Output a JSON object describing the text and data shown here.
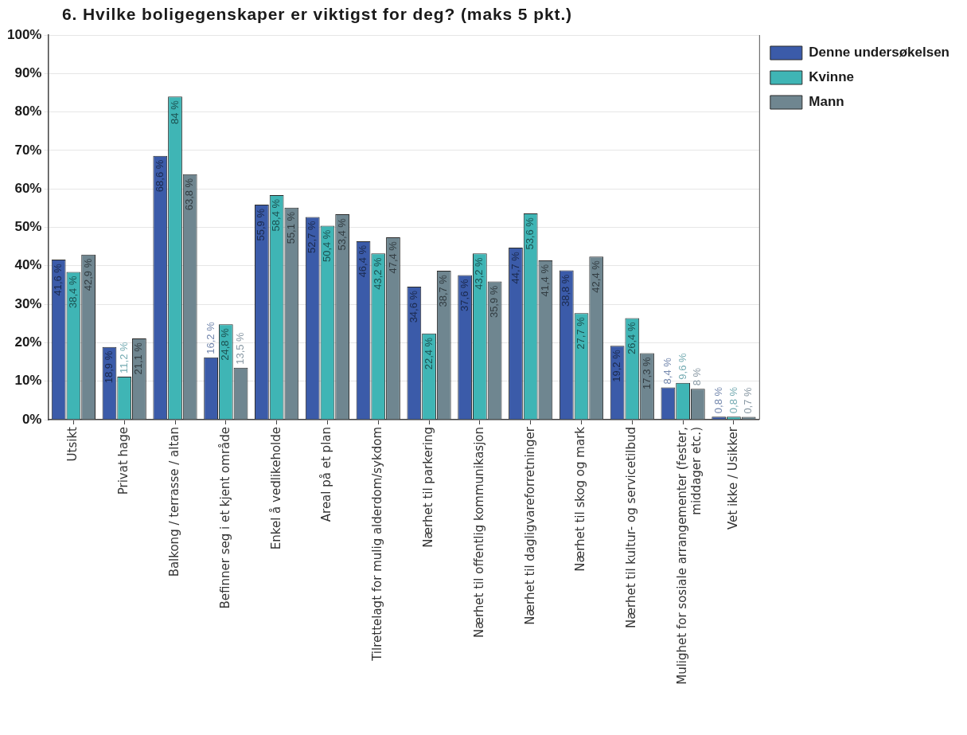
{
  "chart_data": {
    "type": "bar",
    "title": "6. Hvilke boligegenskaper er viktigst for deg? (maks 5 pkt.)",
    "categories": [
      "Utsikt",
      "Privat hage",
      "Balkong / terrasse / altan",
      "Befinner seg i et kjent område",
      "Enkel å vedlikeholde",
      "Areal på et plan",
      "Tilrettelagt for mulig alderdom/sykdom",
      "Nærhet til parkering",
      "Nærhet til offentlig kommunikasjon",
      "Nærhet til dagligvareforretninger",
      "Nærhet til skog og mark",
      "Nærhet til kultur- og servicetilbud",
      "Mulighet for sosiale arrangementer (fester, middager etc.)",
      "Vet ikke / Usikker"
    ],
    "series": [
      {
        "name": "Denne undersøkelsen",
        "color": "#3b5ba9",
        "values": [
          41.6,
          18.9,
          68.6,
          16.2,
          55.9,
          52.7,
          46.4,
          34.6,
          37.6,
          44.7,
          38.8,
          19.2,
          8.4,
          0.8
        ],
        "value_labels": [
          "41,6 %",
          "18,9 %",
          "68,6 %",
          "16,2 %",
          "55,9 %",
          "52,7 %",
          "46,4 %",
          "34,6 %",
          "37,6 %",
          "44,7 %",
          "38,8 %",
          "19,2 %",
          "8,4 %",
          "0,8 %"
        ]
      },
      {
        "name": "Kvinne",
        "color": "#3fb5b5",
        "values": [
          38.4,
          11.2,
          84,
          24.8,
          58.4,
          50.4,
          43.2,
          22.4,
          43.2,
          53.6,
          27.7,
          26.4,
          9.6,
          0.8
        ],
        "value_labels": [
          "38,4 %",
          "11,2 %",
          "84 %",
          "24,8 %",
          "58,4 %",
          "50,4 %",
          "43,2 %",
          "22,4 %",
          "43,2 %",
          "53,6 %",
          "27,7 %",
          "26,4 %",
          "9,6 %",
          "0,8 %"
        ]
      },
      {
        "name": "Mann",
        "color": "#6f8690",
        "values": [
          42.9,
          21.1,
          63.8,
          13.5,
          55.1,
          53.4,
          47.4,
          38.7,
          35.9,
          41.4,
          42.4,
          17.3,
          8,
          0.7
        ],
        "value_labels": [
          "42,9 %",
          "21,1 %",
          "63,8 %",
          "13,5 %",
          "55,1 %",
          "53,4 %",
          "47,4 %",
          "38,7 %",
          "35,9 %",
          "41,4 %",
          "42,4 %",
          "17,3 %",
          "8 %",
          "0,7 %"
        ]
      }
    ],
    "ylim": [
      0,
      100
    ],
    "yticks": [
      {
        "value": 0,
        "label": "0%"
      },
      {
        "value": 10,
        "label": "10%"
      },
      {
        "value": 20,
        "label": "20%"
      },
      {
        "value": 30,
        "label": "30%"
      },
      {
        "value": 40,
        "label": "40%"
      },
      {
        "value": 50,
        "label": "50%"
      },
      {
        "value": 60,
        "label": "60%"
      },
      {
        "value": 70,
        "label": "70%"
      },
      {
        "value": 80,
        "label": "80%"
      },
      {
        "value": 90,
        "label": "90%"
      },
      {
        "value": 100,
        "label": "100%"
      }
    ],
    "grid": "y",
    "legend": "top right"
  }
}
